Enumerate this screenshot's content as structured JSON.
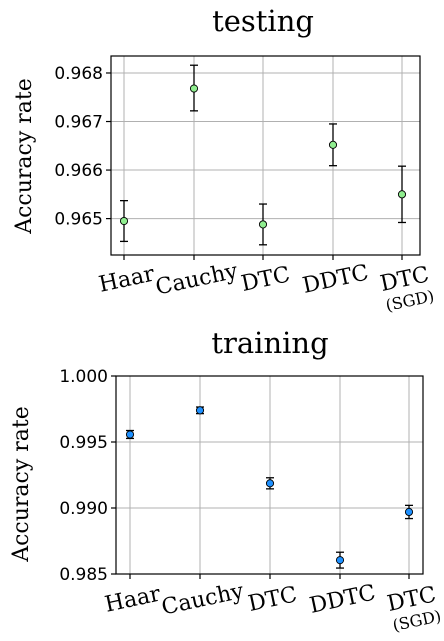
{
  "chart_data": [
    {
      "type": "scatter",
      "title": "testing",
      "xlabel": "",
      "ylabel": "Accuracy rate",
      "categories": [
        {
          "name": "Haar",
          "sub": ""
        },
        {
          "name": "Cauchy",
          "sub": ""
        },
        {
          "name": "DTC",
          "sub": ""
        },
        {
          "name": "DDTC",
          "sub": ""
        },
        {
          "name": "DTC",
          "sub": "(SGD)"
        }
      ],
      "values": [
        0.96495,
        0.96768,
        0.96488,
        0.96652,
        0.9655
      ],
      "error_low": [
        0.96453,
        0.96722,
        0.96446,
        0.96609,
        0.96492
      ],
      "error_high": [
        0.96537,
        0.96816,
        0.9653,
        0.96695,
        0.96608
      ],
      "ylim": [
        0.96425,
        0.96835
      ],
      "yticks": [
        "0.965",
        "0.966",
        "0.967",
        "0.968"
      ],
      "ytick_values": [
        0.965,
        0.966,
        0.967,
        0.968
      ],
      "marker_color": "#90ee90",
      "grid": true
    },
    {
      "type": "scatter",
      "title": "training",
      "xlabel": "",
      "ylabel": "Accuracy rate",
      "categories": [
        {
          "name": "Haar",
          "sub": ""
        },
        {
          "name": "Cauchy",
          "sub": ""
        },
        {
          "name": "DTC",
          "sub": ""
        },
        {
          "name": "DDTC",
          "sub": ""
        },
        {
          "name": "DTC",
          "sub": "(SGD)"
        }
      ],
      "values": [
        0.99557,
        0.9974,
        0.99187,
        0.98605,
        0.9897
      ],
      "error_low": [
        0.99527,
        0.99715,
        0.99145,
        0.98545,
        0.9892
      ],
      "error_high": [
        0.99587,
        0.99765,
        0.99229,
        0.98665,
        0.9902
      ],
      "ylim": [
        0.985,
        1.0
      ],
      "yticks": [
        "0.985",
        "0.990",
        "0.995",
        "1.000"
      ],
      "ytick_values": [
        0.985,
        0.99,
        0.995,
        1.0
      ],
      "marker_color": "#1e90ff",
      "grid": true
    }
  ]
}
